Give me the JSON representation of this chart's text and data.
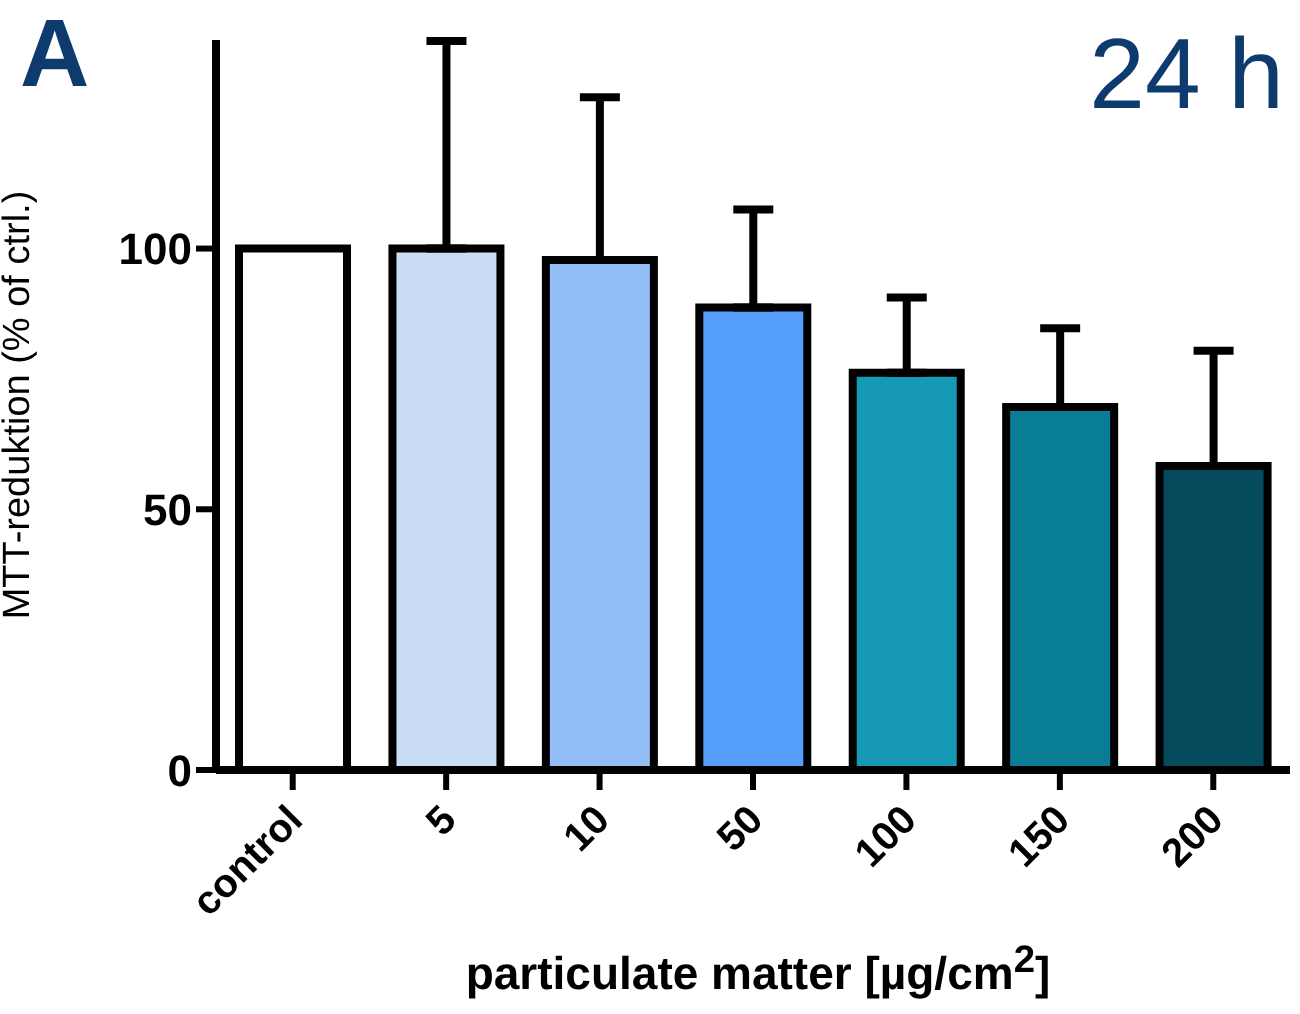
{
  "chart_data": {
    "type": "bar",
    "title": "24 h",
    "annotations": [
      "A"
    ],
    "xlabel": "particulate matter [µg/cm$^{2}$]",
    "ylabel": "MTT-reduktion (% of ctrl.)",
    "categories": [
      "control",
      "5",
      "10",
      "50",
      "100",
      "150",
      "200"
    ],
    "values": [
      100,
      100,
      97.8,
      88.7,
      76.2,
      69.6,
      58.3
    ],
    "colors": [
      "#ffffff",
      "#c9ddf5",
      "#92bdf5",
      "#559ffa",
      "#1599b5",
      "#0a7d96",
      "#064a5e"
    ],
    "errors": [
      null,
      [
        100,
        139.8
      ],
      [
        97.8,
        129
      ],
      [
        88.7,
        107.5
      ],
      [
        76.2,
        90.6
      ],
      [
        69.6,
        84.7
      ],
      [
        58.3,
        80.4
      ]
    ],
    "ylim": [
      0,
      140
    ],
    "yticks": [
      0,
      50,
      100
    ],
    "grid": false,
    "legend": false
  }
}
